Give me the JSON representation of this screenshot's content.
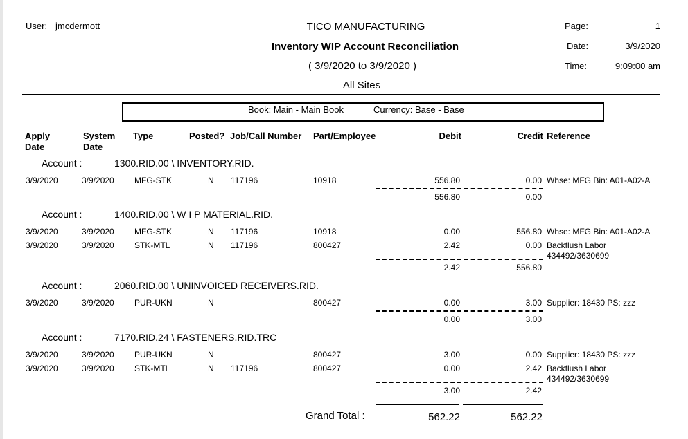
{
  "header": {
    "user_label": "User:",
    "user": "jmcdermott",
    "company": "TICO MANUFACTURING",
    "report_title": "Inventory WIP Account Reconciliation",
    "date_range": "( 3/9/2020 to 3/9/2020 )",
    "sites": "All Sites",
    "page_label": "Page:",
    "page": "1",
    "date_label": "Date:",
    "date": "3/9/2020",
    "time_label": "Time:",
    "time": "9:09:00 am"
  },
  "book_box": {
    "book": "Book: Main - Main Book",
    "currency": "Currency: Base - Base"
  },
  "columns": {
    "apply_date_1": "Apply",
    "apply_date_2": "Date",
    "system_date_1": "System",
    "system_date_2": "Date",
    "type": "Type",
    "posted": "Posted?",
    "job": "Job/Call Number",
    "part": "Part/Employee",
    "debit": "Debit",
    "credit": "Credit",
    "reference": "Reference"
  },
  "account_label": "Account :",
  "accounts": [
    {
      "name": "1300.RID.00 \\ INVENTORY.RID.",
      "rows": [
        {
          "apply": "3/9/2020",
          "system": "3/9/2020",
          "type": "MFG-STK",
          "posted": "N",
          "job": "117196",
          "part": "10918",
          "debit": "556.80",
          "credit": "0.00",
          "ref": "Whse: MFG Bin: A01-A02-A",
          "ref2": ""
        }
      ],
      "subtotal_debit": "556.80",
      "subtotal_credit": "0.00"
    },
    {
      "name": "1400.RID.00 \\ W I P MATERIAL.RID.",
      "rows": [
        {
          "apply": "3/9/2020",
          "system": "3/9/2020",
          "type": "MFG-STK",
          "posted": "N",
          "job": "117196",
          "part": "10918",
          "debit": "0.00",
          "credit": "556.80",
          "ref": "Whse: MFG Bin: A01-A02-A",
          "ref2": ""
        },
        {
          "apply": "3/9/2020",
          "system": "3/9/2020",
          "type": "STK-MTL",
          "posted": "N",
          "job": "117196",
          "part": "800427",
          "debit": "2.42",
          "credit": "0.00",
          "ref": "Backflush Labor",
          "ref2": "434492/3630699"
        }
      ],
      "subtotal_debit": "2.42",
      "subtotal_credit": "556.80"
    },
    {
      "name": "2060.RID.00 \\ UNINVOICED RECEIVERS.RID.",
      "rows": [
        {
          "apply": "3/9/2020",
          "system": "3/9/2020",
          "type": "PUR-UKN",
          "posted": "N",
          "job": "",
          "part": "800427",
          "debit": "0.00",
          "credit": "3.00",
          "ref": "Supplier: 18430 PS: zzz",
          "ref2": ""
        }
      ],
      "subtotal_debit": "0.00",
      "subtotal_credit": "3.00"
    },
    {
      "name": "7170.RID.24 \\ FASTENERS.RID.TRC",
      "rows": [
        {
          "apply": "3/9/2020",
          "system": "3/9/2020",
          "type": "PUR-UKN",
          "posted": "N",
          "job": "",
          "part": "800427",
          "debit": "3.00",
          "credit": "0.00",
          "ref": "Supplier: 18430 PS: zzz",
          "ref2": ""
        },
        {
          "apply": "3/9/2020",
          "system": "3/9/2020",
          "type": "STK-MTL",
          "posted": "N",
          "job": "117196",
          "part": "800427",
          "debit": "0.00",
          "credit": "2.42",
          "ref": "Backflush Labor",
          "ref2": "434492/3630699"
        }
      ],
      "subtotal_debit": "3.00",
      "subtotal_credit": "2.42"
    }
  ],
  "grand_total": {
    "label": "Grand Total :",
    "debit": "562.22",
    "credit": "562.22"
  }
}
